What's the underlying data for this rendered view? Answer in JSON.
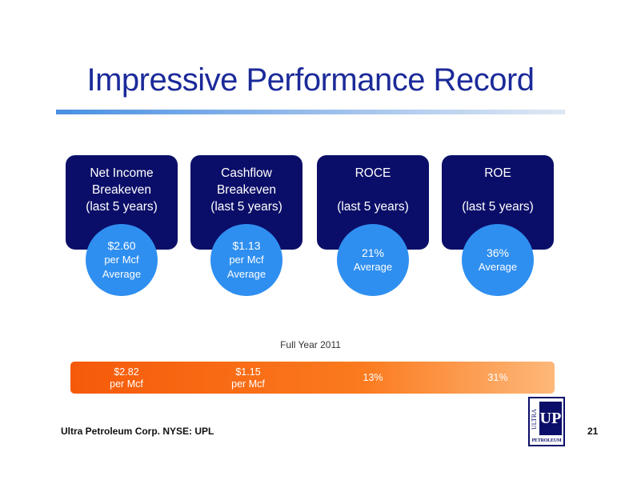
{
  "slide": {
    "title": "Impressive Performance Record",
    "metrics": [
      {
        "heading_lines": [
          "Net Income",
          "Breakeven",
          "(last 5 years)"
        ],
        "value_lines": [
          "$2.60",
          "per Mcf",
          "Average"
        ]
      },
      {
        "heading_lines": [
          "Cashflow",
          "Breakeven",
          "(last 5 years)"
        ],
        "value_lines": [
          "$1.13",
          "per Mcf",
          "Average"
        ]
      },
      {
        "heading_lines": [
          "ROCE",
          "",
          "(last 5 years)"
        ],
        "value_lines": [
          "21%",
          "Average"
        ]
      },
      {
        "heading_lines": [
          "ROE",
          "",
          "(last 5 years)"
        ],
        "value_lines": [
          "36%",
          "Average"
        ]
      }
    ],
    "full_year": {
      "label": "Full Year 2011",
      "values": [
        [
          "$2.82",
          "per Mcf"
        ],
        [
          "$1.15",
          "per Mcf"
        ],
        [
          "13%"
        ],
        [
          "31%"
        ]
      ]
    },
    "footer": {
      "company": "Ultra Petroleum Corp. NYSE: UPL",
      "page_number": "21"
    },
    "logo": {
      "vertical_text": "ULTRA",
      "mark": "UP",
      "bottom_text": "PETROLEUM"
    },
    "colors": {
      "title": "#1b2a99",
      "card": "#0b0e68",
      "circle": "#2f8ff0",
      "bar_start": "#f55a0a",
      "bar_end": "#fdb87a"
    }
  }
}
